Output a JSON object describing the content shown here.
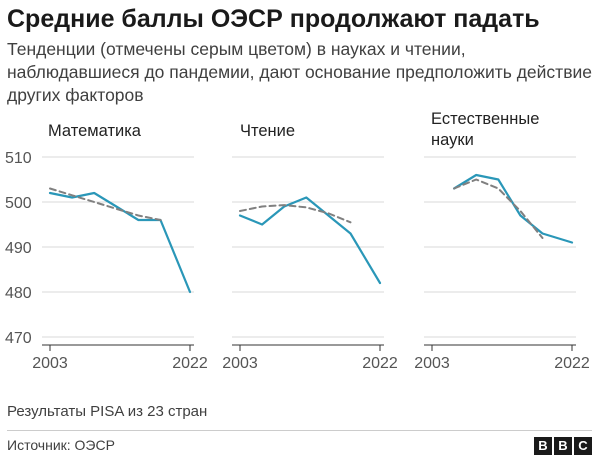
{
  "header": {
    "title": "Средние баллы ОЭСР продолжают падать",
    "subtitle": "Тенденции (отмечены серым цветом) в науках и чтении, наблюдавшиеся до пандемии, дают основание предположить действие других факторов"
  },
  "footer": {
    "note": "Результаты PISA из 23 стран",
    "source": "Источник: ОЭСР",
    "logo_letters": [
      "B",
      "B",
      "C"
    ]
  },
  "colors": {
    "actual_line": "#2a97b8",
    "trend_line": "#808080",
    "gridline": "#d9d9d9",
    "axis": "#333333",
    "text": "#222222"
  },
  "chart_data": [
    {
      "type": "line",
      "title": "Математика",
      "ylim": [
        470,
        510
      ],
      "yticks": [
        470,
        480,
        490,
        500,
        510
      ],
      "xticks": [
        "2003",
        "2022"
      ],
      "x": [
        2003,
        2006,
        2009,
        2012,
        2015,
        2018,
        2022
      ],
      "series": [
        {
          "role": "actual",
          "values": [
            502,
            501,
            502,
            499,
            496,
            496,
            480
          ]
        },
        {
          "role": "trend",
          "x": [
            2003,
            2006,
            2009,
            2012,
            2015,
            2018
          ],
          "values": [
            503,
            501.5,
            500,
            498.5,
            497,
            496
          ]
        }
      ],
      "grid": true
    },
    {
      "type": "line",
      "title": "Чтение",
      "ylim": [
        470,
        510
      ],
      "yticks": [
        470,
        480,
        490,
        500,
        510
      ],
      "xticks": [
        "2003",
        "2022"
      ],
      "x": [
        2003,
        2006,
        2009,
        2012,
        2015,
        2018,
        2022
      ],
      "series": [
        {
          "role": "actual",
          "values": [
            497,
            495,
            499,
            501,
            497,
            493,
            482
          ]
        },
        {
          "role": "trend",
          "x": [
            2003,
            2006,
            2009,
            2012,
            2015,
            2018
          ],
          "values": [
            498,
            499,
            499.3,
            498.8,
            497.5,
            495.5
          ]
        }
      ],
      "grid": true
    },
    {
      "type": "line",
      "title": "Естественные науки",
      "ylim": [
        470,
        510
      ],
      "yticks": [
        470,
        480,
        490,
        500,
        510
      ],
      "xticks": [
        "2003",
        "2022"
      ],
      "x": [
        2006,
        2009,
        2012,
        2015,
        2018,
        2022
      ],
      "series": [
        {
          "role": "actual",
          "values": [
            503,
            506,
            505,
            497,
            493,
            491
          ]
        },
        {
          "role": "trend",
          "x": [
            2006,
            2009,
            2012,
            2015,
            2018
          ],
          "values": [
            503,
            505,
            503,
            498,
            492
          ]
        }
      ],
      "grid": true
    }
  ]
}
